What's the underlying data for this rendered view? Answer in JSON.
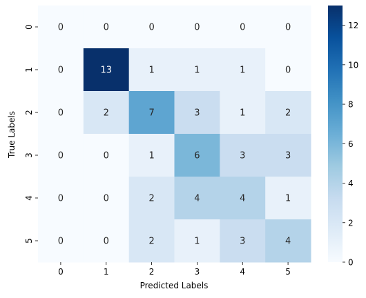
{
  "chart_data": {
    "type": "heatmap",
    "title": "",
    "xlabel": "Predicted Labels",
    "ylabel": "True Labels",
    "x_categories": [
      "0",
      "1",
      "2",
      "3",
      "4",
      "5"
    ],
    "y_categories": [
      "0",
      "1",
      "2",
      "3",
      "4",
      "5"
    ],
    "values": [
      [
        0,
        0,
        0,
        0,
        0,
        0
      ],
      [
        0,
        13,
        1,
        1,
        1,
        0
      ],
      [
        0,
        2,
        7,
        3,
        1,
        2
      ],
      [
        0,
        0,
        1,
        6,
        3,
        3
      ],
      [
        0,
        0,
        2,
        4,
        4,
        1
      ],
      [
        0,
        0,
        2,
        1,
        3,
        4
      ]
    ],
    "colormap": "Blues",
    "colorbar": {
      "min": 0,
      "max": 13,
      "ticks": [
        0,
        2,
        4,
        6,
        8,
        10,
        12
      ]
    },
    "annotations": true,
    "grid": false,
    "legend": "colorbar-right"
  }
}
